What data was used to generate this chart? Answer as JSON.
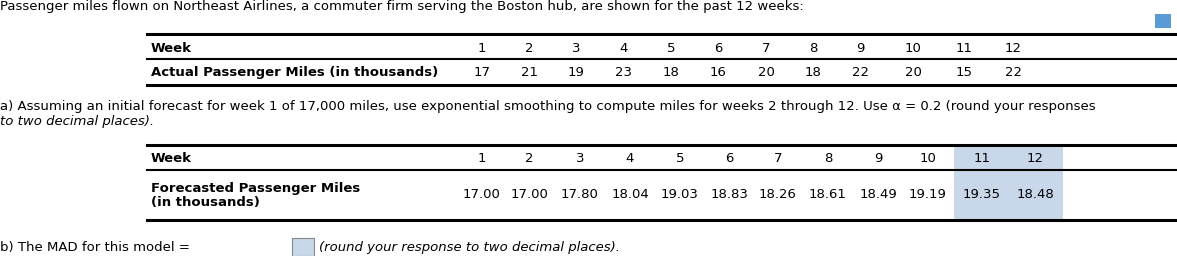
{
  "intro_text": "Passenger miles flown on Northeast Airlines, a commuter firm serving the Boston hub, are shown for the past 12 weeks:",
  "table1_week_label": "Week",
  "table1_row_label": "Actual Passenger Miles (in thousands)",
  "table1_weeks": [
    "1",
    "2",
    "3",
    "4",
    "5",
    "6",
    "7",
    "8",
    "9",
    "10",
    "11",
    "12"
  ],
  "table1_values": [
    "17",
    "21",
    "19",
    "23",
    "18",
    "16",
    "20",
    "18",
    "22",
    "20",
    "15",
    "22"
  ],
  "part_a_line1": "a) Assuming an initial forecast for week 1 of 17,000 miles, use exponential smoothing to compute miles for weeks 2 through 12. Use α = 0.2 (round your responses",
  "part_a_line2": "to two decimal places).",
  "table2_week_label": "Week",
  "table2_row_label_line1": "Forecasted Passenger Miles",
  "table2_row_label_line2": "(in thousands)",
  "table2_weeks": [
    "1",
    "2",
    "3",
    "4",
    "5",
    "6",
    "7",
    "8",
    "9",
    "10",
    "11",
    "12"
  ],
  "table2_values": [
    "17.00",
    "17.00",
    "17.80",
    "18.04",
    "19.03",
    "18.83",
    "18.26",
    "18.61",
    "18.49",
    "19.19",
    "19.35",
    "18.48"
  ],
  "table2_highlight_indices": [
    10,
    11
  ],
  "table2_highlight_color": "#c8d8ea",
  "part_b_text": "b) The MAD for this model =",
  "part_b_italic": "(round your response to two decimal places).",
  "input_box_color": "#c8d8ea",
  "input_box_border": "#888888",
  "bg_color": "#ffffff",
  "corner_icon_color": "#5b9bd5",
  "line_color": "#000000",
  "text_color": "#000000",
  "fs": 9.5
}
